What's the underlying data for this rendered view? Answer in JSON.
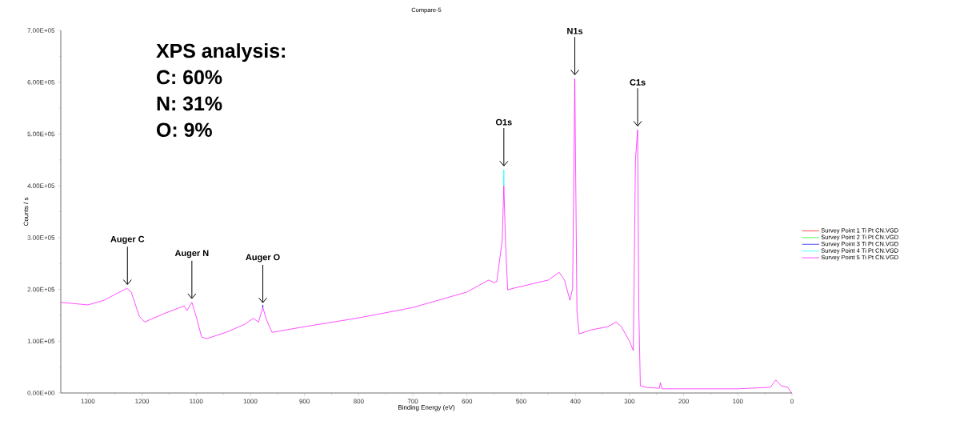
{
  "chart_data": {
    "type": "line",
    "title": "Compare-5",
    "xlabel": "Binding Energy (eV)",
    "ylabel": "Counts / s",
    "x": [
      1350,
      1300,
      1270,
      1245,
      1228,
      1220,
      1205,
      1195,
      1160,
      1130,
      1122,
      1117,
      1108,
      1100,
      1090,
      1080,
      1040,
      1010,
      995,
      985,
      977,
      970,
      960,
      900,
      800,
      700,
      600,
      560,
      550,
      545,
      535,
      532,
      529,
      525,
      515,
      450,
      430,
      420,
      410,
      405,
      401,
      397,
      393,
      370,
      340,
      325,
      315,
      300,
      293,
      289,
      285,
      283,
      280,
      270,
      245,
      243,
      240,
      100,
      40,
      30,
      20,
      8,
      2,
      0
    ],
    "series": [
      {
        "name": "Survey Point 1 Ti Pt CN.VGD",
        "color": "#ff0000",
        "values": [
          null,
          null,
          null,
          null,
          null,
          null,
          null,
          null,
          null,
          null,
          null,
          null,
          null,
          null,
          null,
          null,
          null,
          null,
          null,
          null,
          null,
          null,
          null,
          null,
          null,
          null,
          null,
          null,
          null,
          null,
          null,
          null,
          null,
          null,
          null,
          null,
          null,
          null,
          null,
          null,
          null,
          null,
          null,
          null,
          null,
          null,
          null,
          null,
          null,
          null,
          null,
          null,
          null,
          null,
          null,
          null,
          null,
          null,
          null,
          null,
          null,
          null,
          null,
          null
        ]
      },
      {
        "name": "Survey Point 2 Ti Pt CN.VGD",
        "color": "#00ff00",
        "values": [
          null,
          null,
          null,
          null,
          null,
          null,
          null,
          null,
          null,
          null,
          null,
          null,
          null,
          null,
          null,
          null,
          null,
          null,
          null,
          null,
          null,
          null,
          null,
          null,
          null,
          null,
          null,
          null,
          null,
          null,
          null,
          null,
          null,
          null,
          null,
          null,
          null,
          null,
          null,
          null,
          null,
          null,
          null,
          null,
          null,
          null,
          null,
          null,
          null,
          null,
          null,
          null,
          null,
          null,
          null,
          null,
          null,
          null,
          null,
          null,
          null,
          null,
          null,
          null
        ]
      },
      {
        "name": "Survey Point 3 Ti Pt CN.VGD",
        "color": "#0000ff",
        "x": [
          977.5,
          977,
          976.5
        ],
        "values": [
          165000,
          170000,
          165000
        ]
      },
      {
        "name": "Survey Point 4 Ti Pt CN.VGD",
        "color": "#00ffff",
        "x": [
          532.5,
          532,
          531.5
        ],
        "values": [
          400000,
          431000,
          400000
        ]
      },
      {
        "name": "Survey Point 5 Ti Pt CN.VGD",
        "color": "#ff00ff",
        "values": [
          175000,
          170000,
          179000,
          193000,
          202000,
          195000,
          148000,
          137000,
          153000,
          165000,
          168000,
          159000,
          175000,
          148000,
          108000,
          105000,
          119000,
          133000,
          144000,
          137000,
          165000,
          141000,
          117000,
          128000,
          145000,
          165000,
          195000,
          218000,
          213000,
          215000,
          295000,
          400000,
          295000,
          199000,
          202000,
          218000,
          233000,
          218000,
          179000,
          202000,
          607000,
          156000,
          114000,
          122000,
          128000,
          137000,
          128000,
          100000,
          82000,
          450000,
          508000,
          170000,
          14000,
          11000,
          9000,
          20000,
          8000,
          8000,
          11000,
          25000,
          14000,
          11000,
          2000,
          0
        ]
      }
    ],
    "xlim": [
      1350,
      0
    ],
    "xticks": [
      1300,
      1200,
      1100,
      1000,
      900,
      800,
      700,
      600,
      500,
      400,
      300,
      200,
      100,
      0
    ],
    "ylim": [
      0,
      700000
    ],
    "yticks": [
      {
        "value": 0,
        "label": "0.00E+00"
      },
      {
        "value": 100000,
        "label": "1.00E+05"
      },
      {
        "value": 200000,
        "label": "2.00E+05"
      },
      {
        "value": 300000,
        "label": "3.00E+05"
      },
      {
        "value": 400000,
        "label": "4.00E+05"
      },
      {
        "value": 500000,
        "label": "5.00E+05"
      },
      {
        "value": 600000,
        "label": "6.00E+05"
      },
      {
        "value": 700000,
        "label": "7.00E+05"
      }
    ],
    "grid": false,
    "legend": "right",
    "marker": "none",
    "line_style": "solid",
    "annotations": [
      "XPS analysis:",
      "C: 60%",
      "N: 31%",
      "O: 9%",
      {
        "text": "Auger C",
        "x": 1227,
        "y": 202000
      },
      {
        "text": "Auger N",
        "x": 1108,
        "y": 175000
      },
      {
        "text": "Auger O",
        "x": 977,
        "y": 167000
      },
      {
        "text": "O1s",
        "x": 532,
        "y": 431000
      },
      {
        "text": "N1s",
        "x": 401,
        "y": 607000
      },
      {
        "text": "C1s",
        "x": 285,
        "y": 508000
      }
    ]
  }
}
